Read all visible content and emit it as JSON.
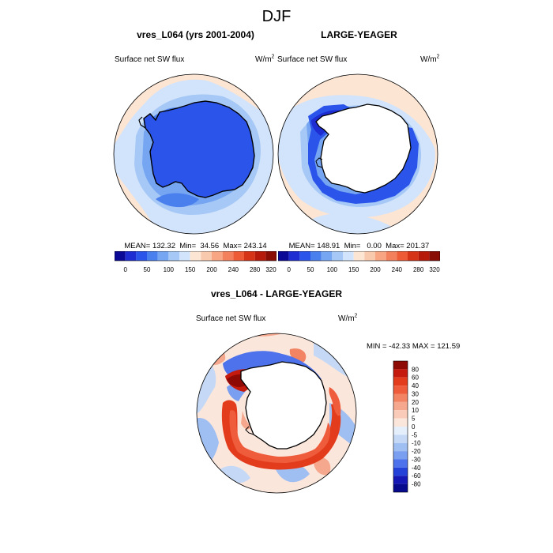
{
  "page": {
    "title": "DJF",
    "units_base": "W/m",
    "units_exp": "2"
  },
  "panel1": {
    "title": "vres_L064 (yrs 2001-2004)",
    "variable": "Surface net SW flux",
    "stats": "MEAN= 132.32  Min=  34.56  Max= 243.14"
  },
  "panel2": {
    "title": "LARGE-YEAGER",
    "variable": "Surface net SW flux",
    "stats": "MEAN= 148.91  Min=   0.00  Max= 201.37"
  },
  "panel3": {
    "title": "vres_L064 - LARGE-YEAGER",
    "variable": "Surface net SW flux",
    "stats": "MIN = -42.33 MAX = 121.59"
  },
  "colors": {
    "land": "#ffffff",
    "coast": "#000000"
  },
  "chart_data": [
    {
      "type": "heatmap",
      "projection": "south-polar-stereographic",
      "title": "vres_L064 (yrs 2001-2004)",
      "variable": "Surface net SW flux",
      "units": "W/m2",
      "mean": 132.32,
      "min": 34.56,
      "max": 243.14,
      "levels": [
        0,
        50,
        100,
        150,
        200,
        240,
        280,
        320
      ],
      "colors": [
        "#0a0a96",
        "#1d2dd2",
        "#2a54ea",
        "#4a7fee",
        "#76a6f2",
        "#a6c8f6",
        "#d2e4fb",
        "#fde5d3",
        "#f9c9ae",
        "#f7a583",
        "#f3805d",
        "#ed5a36",
        "#d63417",
        "#b51a0b",
        "#8a0d05"
      ]
    },
    {
      "type": "heatmap",
      "projection": "south-polar-stereographic",
      "title": "LARGE-YEAGER",
      "variable": "Surface net SW flux",
      "units": "W/m2",
      "mean": 148.91,
      "min": 0.0,
      "max": 201.37,
      "levels": [
        0,
        50,
        100,
        150,
        200,
        240,
        280,
        320
      ],
      "colors": [
        "#0a0a96",
        "#1d2dd2",
        "#2a54ea",
        "#4a7fee",
        "#76a6f2",
        "#a6c8f6",
        "#d2e4fb",
        "#fde5d3",
        "#f9c9ae",
        "#f7a583",
        "#f3805d",
        "#ed5a36",
        "#d63417",
        "#b51a0b",
        "#8a0d05"
      ]
    },
    {
      "type": "heatmap",
      "projection": "south-polar-stereographic",
      "title": "vres_L064 - LARGE-YEAGER",
      "variable": "Surface net SW flux",
      "units": "W/m2",
      "min": -42.33,
      "max": 121.59,
      "levels": [
        80,
        60,
        40,
        30,
        20,
        10,
        5,
        0,
        -5,
        -10,
        -20,
        -30,
        -40,
        -60,
        -80
      ],
      "colors": [
        "#8e0a04",
        "#c51a0e",
        "#e33c1c",
        "#ee5c3c",
        "#f38463",
        "#f6a88e",
        "#f9cbb8",
        "#fbe6dc",
        "#e5eefb",
        "#c5d9f6",
        "#9fbef2",
        "#7a9ff0",
        "#4d72ec",
        "#2442d8",
        "#1518b4",
        "#070a8c"
      ]
    }
  ]
}
